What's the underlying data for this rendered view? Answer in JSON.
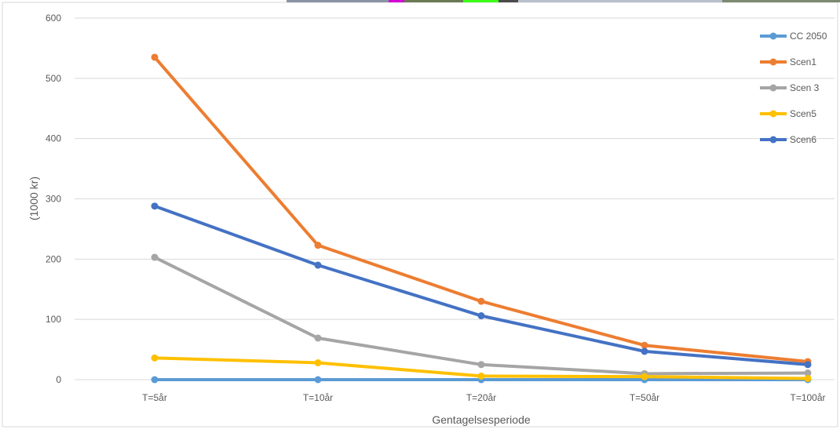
{
  "chart_data": {
    "type": "line",
    "title": "",
    "xlabel": "Gentagelsesperiode",
    "ylabel": "(1000 kr)",
    "categories": [
      "T=5år",
      "T=10år",
      "T=20år",
      "T=50år",
      "T=100år"
    ],
    "ylim": [
      0,
      600
    ],
    "yticks": [
      0,
      100,
      200,
      300,
      400,
      500,
      600
    ],
    "grid": true,
    "legend_position": "right",
    "series": [
      {
        "name": "CC 2050",
        "color": "#5B9BD5",
        "values": [
          0,
          0,
          0,
          0,
          0
        ]
      },
      {
        "name": "Scen1",
        "color": "#ED7D31",
        "values": [
          535,
          223,
          130,
          57,
          30
        ]
      },
      {
        "name": "Scen 3",
        "color": "#A5A5A5",
        "values": [
          203,
          69,
          25,
          10,
          11
        ]
      },
      {
        "name": "Scen5",
        "color": "#FFC000",
        "values": [
          36,
          28,
          6,
          5,
          2
        ]
      },
      {
        "name": "Scen6",
        "color": "#4472C4",
        "values": [
          288,
          190,
          106,
          47,
          25
        ]
      }
    ]
  },
  "top_strip_colors": [
    "#8a94a6",
    "#d400d4",
    "#6b7a55",
    "#39ff14",
    "#4a4a4a",
    "#b8c0cc",
    "#7c8a70"
  ]
}
